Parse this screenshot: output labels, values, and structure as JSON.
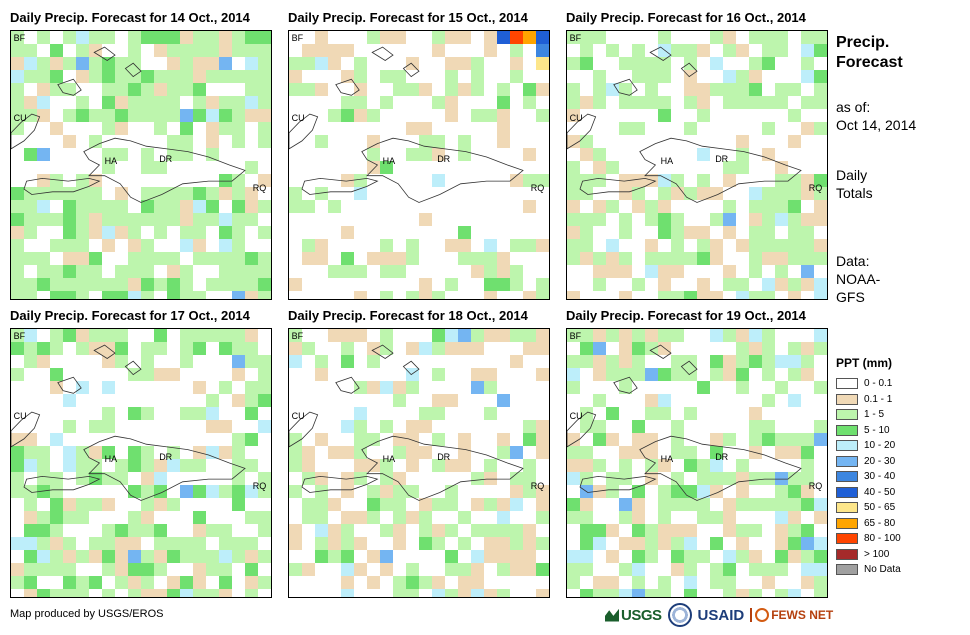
{
  "panels": [
    {
      "title": "Daily Precip. Forecast for 14 Oct., 2014"
    },
    {
      "title": "Daily Precip. Forecast for 15 Oct., 2014"
    },
    {
      "title": "Daily Precip. Forecast for 16 Oct., 2014"
    },
    {
      "title": "Daily Precip. Forecast for 17 Oct., 2014"
    },
    {
      "title": "Daily Precip. Forecast for 18 Oct., 2014"
    },
    {
      "title": "Daily Precip. Forecast for 19 Oct., 2014"
    }
  ],
  "place_labels": {
    "bf": "BF",
    "cu": "CU",
    "ha": "HA",
    "dr": "DR",
    "rq": "RQ"
  },
  "sidebar": {
    "title_line1": "Precip.",
    "title_line2": "Forecast",
    "asof_label": "as of:",
    "asof_date": "Oct 14, 2014",
    "totals_line1": "Daily",
    "totals_line2": "Totals",
    "data_line1": "Data:",
    "data_line2": "NOAA-",
    "data_line3": "GFS"
  },
  "legend": {
    "title": "PPT (mm)",
    "classes": [
      {
        "label": "0 - 0.1",
        "color": "#ffffff"
      },
      {
        "label": "0.1 - 1",
        "color": "#f0d9b6"
      },
      {
        "label": "1 - 5",
        "color": "#bdf5ad"
      },
      {
        "label": "5 - 10",
        "color": "#6fe06f"
      },
      {
        "label": "10 - 20",
        "color": "#bdeefa"
      },
      {
        "label": "20 - 30",
        "color": "#74b5f2"
      },
      {
        "label": "30 - 40",
        "color": "#3d86e0"
      },
      {
        "label": "40 - 50",
        "color": "#1f5fd6"
      },
      {
        "label": "50 - 65",
        "color": "#fde68a"
      },
      {
        "label": "65 - 80",
        "color": "#ffa500"
      },
      {
        "label": "80 - 100",
        "color": "#ff4500"
      },
      {
        "label": "> 100",
        "color": "#a52a2a"
      },
      {
        "label": "No Data",
        "color": "#a0a0a0"
      }
    ]
  },
  "credit": "Map produced by USGS/EROS",
  "logos": {
    "usgs": "USGS",
    "usaid_a": "US",
    "usaid_b": "AID",
    "fews": "FEWS NET"
  }
}
